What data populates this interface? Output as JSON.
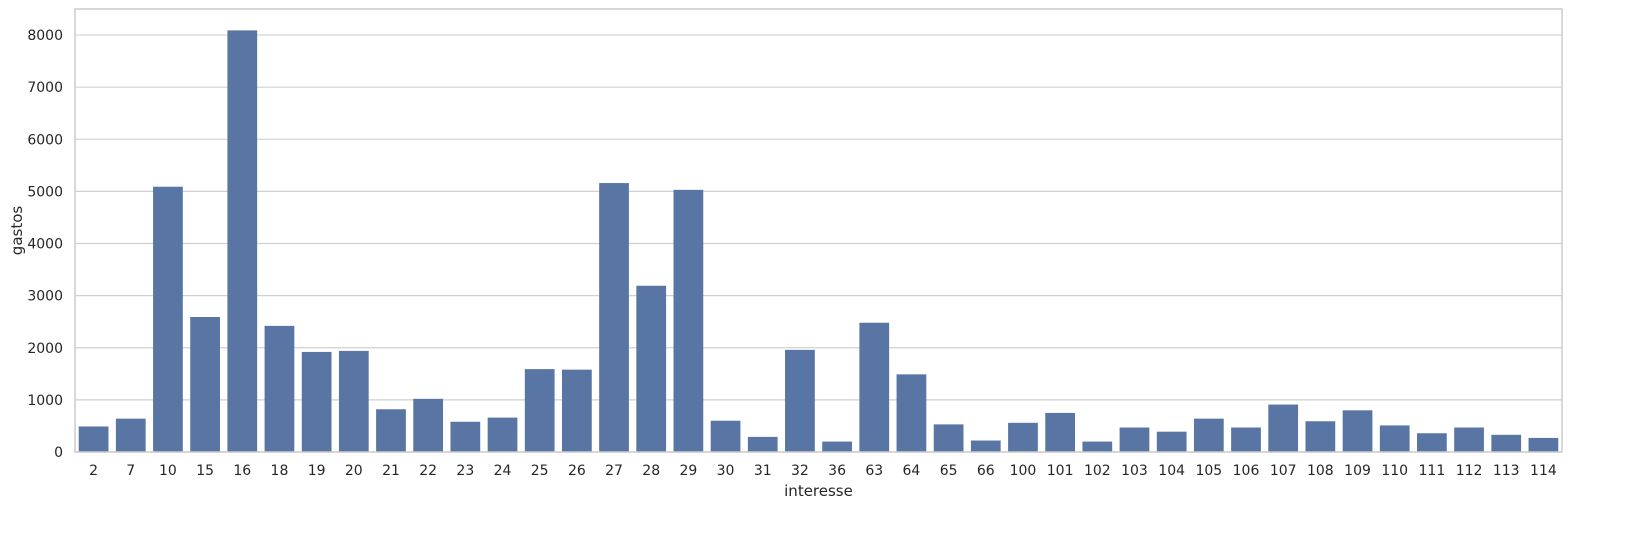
{
  "chart_data": {
    "type": "bar",
    "title": "",
    "xlabel": "interesse",
    "ylabel": "gastos",
    "ylim": [
      0,
      8500
    ],
    "yticks": [
      0,
      1000,
      2000,
      3000,
      4000,
      5000,
      6000,
      7000,
      8000
    ],
    "grid": "horizontal",
    "bar_color": "#5875a4",
    "categories": [
      "2",
      "7",
      "10",
      "15",
      "16",
      "18",
      "19",
      "20",
      "21",
      "22",
      "23",
      "24",
      "25",
      "26",
      "27",
      "28",
      "29",
      "30",
      "31",
      "32",
      "36",
      "63",
      "64",
      "65",
      "66",
      "100",
      "101",
      "102",
      "103",
      "104",
      "105",
      "106",
      "107",
      "108",
      "109",
      "110",
      "111",
      "112",
      "113",
      "114"
    ],
    "values": [
      490,
      640,
      5090,
      2590,
      8090,
      2420,
      1920,
      1940,
      820,
      1020,
      580,
      660,
      1590,
      1580,
      5160,
      3190,
      5030,
      600,
      290,
      1960,
      200,
      2480,
      1490,
      530,
      220,
      560,
      750,
      200,
      470,
      390,
      640,
      470,
      910,
      590,
      800,
      510,
      360,
      470,
      330,
      270
    ]
  }
}
